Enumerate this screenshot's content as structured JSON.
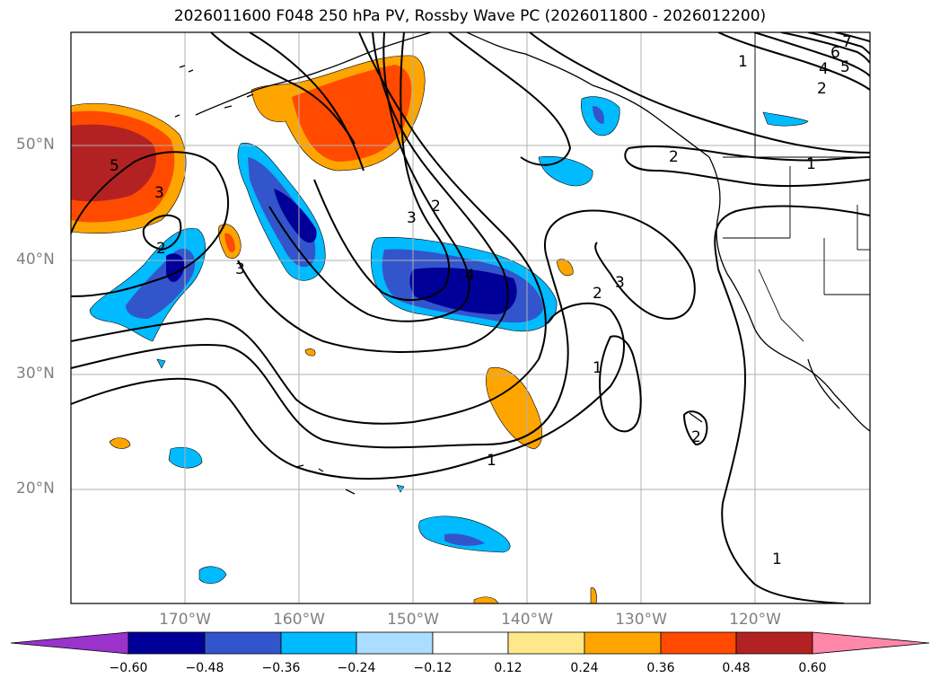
{
  "title": "2026011600 F048 250 hPa PV, Rossby Wave PC (2026011800 - 2026012200)",
  "lat_labels": [
    "50°N",
    "40°N",
    "30°N",
    "20°N"
  ],
  "lon_labels": [
    "170°W",
    "160°W",
    "150°W",
    "140°W",
    "130°W",
    "120°W"
  ],
  "colorbar": {
    "ticks": [
      "−0.60",
      "−0.48",
      "−0.36",
      "−0.24",
      "−0.12",
      "0.12",
      "0.24",
      "0.36",
      "0.48",
      "0.60"
    ],
    "colors": [
      "#9933cc",
      "#000099",
      "#3355cc",
      "#00bbff",
      "#aaddff",
      "#ffffff",
      "#ffe88a",
      "#ffa500",
      "#ff4a00",
      "#b22222",
      "#ff88aa"
    ]
  },
  "contour_labels": [
    "1",
    "2",
    "3",
    "4",
    "5",
    "6",
    "7"
  ]
}
